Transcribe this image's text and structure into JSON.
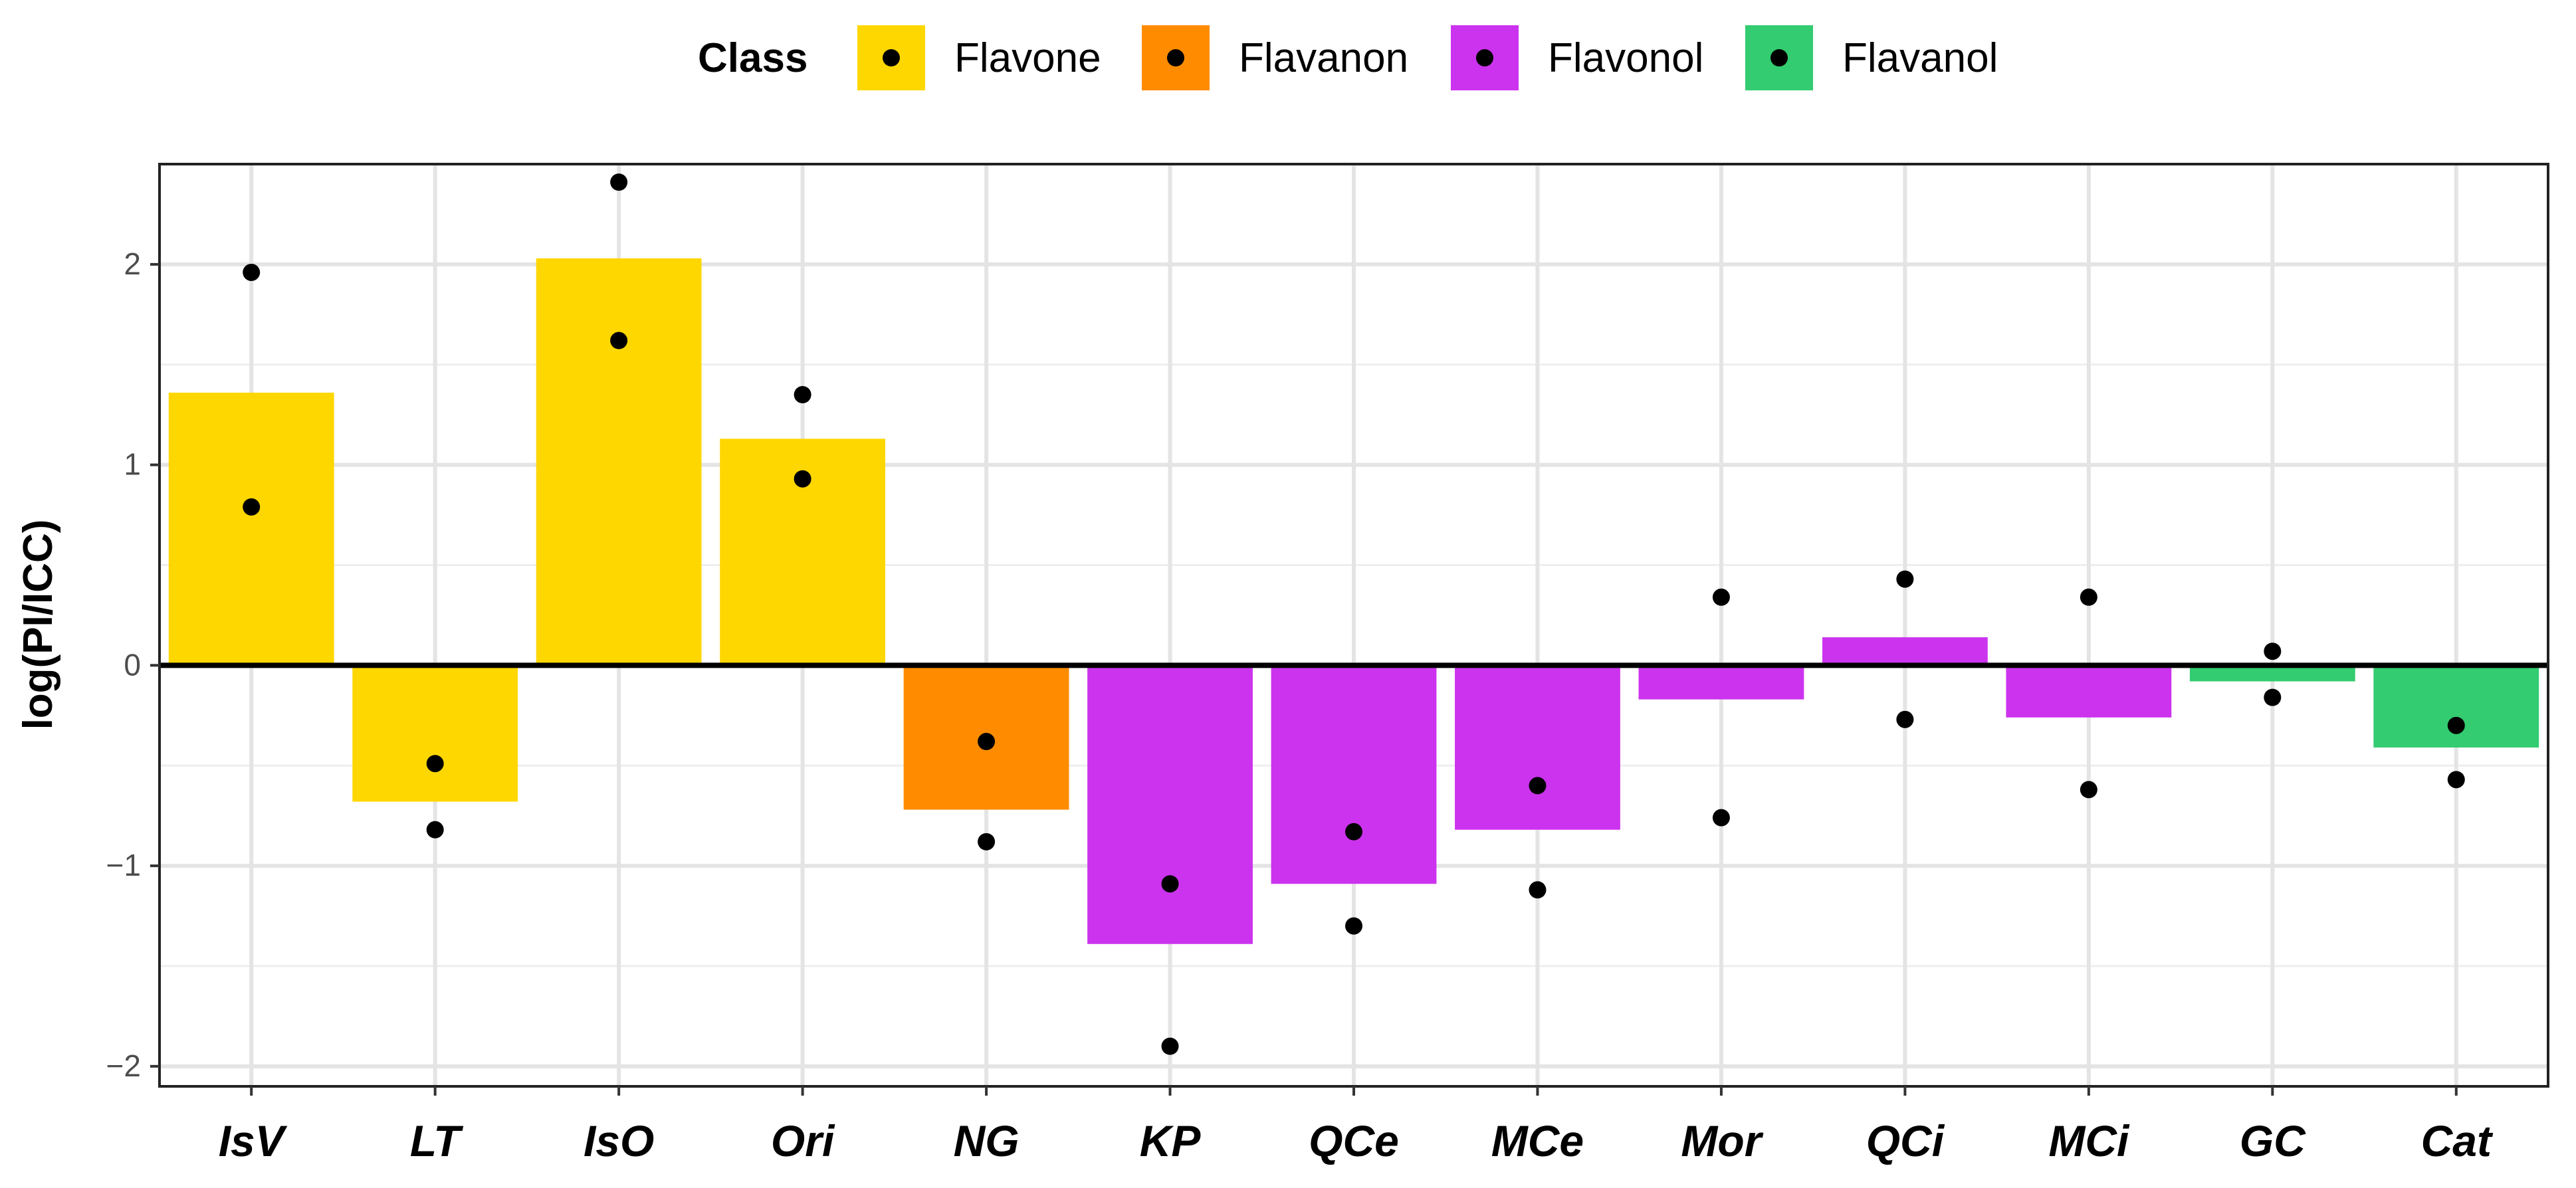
{
  "chart_data": {
    "type": "bar",
    "title": "",
    "xlabel": "",
    "ylabel": "log(PI/ICC)",
    "ylim": [
      -2.1,
      2.5
    ],
    "yticks": [
      -2,
      -1,
      0,
      1,
      2
    ],
    "ytick_labels": [
      "−2",
      "−1",
      "0",
      "1",
      "2"
    ],
    "grid": true,
    "legend": {
      "title": "Class",
      "position": "top",
      "entries": [
        {
          "name": "Flavone",
          "color": "#FFD700"
        },
        {
          "name": "Flavanon",
          "color": "#FF8C00"
        },
        {
          "name": "Flavonol",
          "color": "#CC33EE"
        },
        {
          "name": "Flavanol",
          "color": "#33CC70"
        }
      ]
    },
    "categories": [
      "IsV",
      "LT",
      "IsO",
      "Ori",
      "NG",
      "KP",
      "QCe",
      "MCe",
      "Mor",
      "QCi",
      "MCi",
      "GC",
      "Cat"
    ],
    "classes": [
      "Flavone",
      "Flavone",
      "Flavone",
      "Flavone",
      "Flavanon",
      "Flavonol",
      "Flavonol",
      "Flavonol",
      "Flavonol",
      "Flavonol",
      "Flavonol",
      "Flavanol",
      "Flavanol"
    ],
    "values": [
      1.36,
      -0.68,
      2.03,
      1.13,
      -0.72,
      -1.39,
      -1.09,
      -0.82,
      -0.17,
      0.14,
      -0.26,
      -0.08,
      -0.41
    ],
    "points": [
      [
        1.96,
        0.79
      ],
      [
        -0.49,
        -0.82
      ],
      [
        2.41,
        1.62
      ],
      [
        1.35,
        0.93
      ],
      [
        -0.38,
        -0.88
      ],
      [
        -1.09,
        -1.9
      ],
      [
        -0.83,
        -1.3
      ],
      [
        -0.6,
        -1.12
      ],
      [
        0.34,
        -0.76
      ],
      [
        0.43,
        -0.27
      ],
      [
        0.34,
        -0.62
      ],
      [
        0.07,
        -0.16
      ],
      [
        -0.3,
        -0.57
      ]
    ]
  }
}
